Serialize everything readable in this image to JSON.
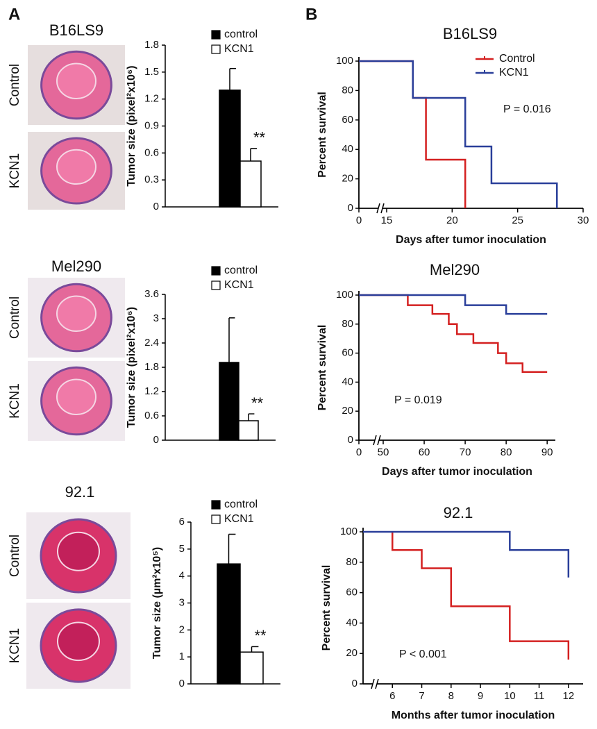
{
  "panel_labels": [
    "A",
    "B"
  ],
  "images": [
    {
      "title": "B16LS9",
      "labels": [
        "Control",
        "KCN1"
      ]
    },
    {
      "title": "Mel290",
      "labels": [
        "Control",
        "KCN1"
      ]
    },
    {
      "title": "92.1",
      "labels": [
        "Control",
        "KCN1"
      ]
    }
  ],
  "chart_data": [
    {
      "type": "bar",
      "categories": [
        null
      ],
      "ylabel": "Tumor size (pixel²x10⁶)",
      "series": [
        {
          "name": "control",
          "color": "#000000",
          "values": [
            1.3
          ],
          "errors": [
            0.24
          ]
        },
        {
          "name": "KCN1",
          "color": "#ffffff",
          "values": [
            0.51
          ],
          "errors": [
            0.14
          ]
        }
      ],
      "ylim": [
        0,
        1.8
      ],
      "yticks": [
        0,
        0.3,
        0.6,
        0.9,
        1.2,
        1.5,
        1.8
      ],
      "annotation": "**"
    },
    {
      "type": "bar",
      "categories": [
        null
      ],
      "ylabel": "Tumor size (pixel²x10⁶)",
      "series": [
        {
          "name": "control",
          "color": "#000000",
          "values": [
            1.92
          ],
          "errors": [
            1.1
          ]
        },
        {
          "name": "KCN1",
          "color": "#ffffff",
          "values": [
            0.48
          ],
          "errors": [
            0.17
          ]
        }
      ],
      "ylim": [
        0,
        3.6
      ],
      "yticks": [
        0,
        0.6,
        1.2,
        1.8,
        2.4,
        3,
        3.6
      ],
      "annotation": "**"
    },
    {
      "type": "bar",
      "categories": [
        null
      ],
      "ylabel": "Tumor size (µm²x10⁵)",
      "series": [
        {
          "name": "control",
          "color": "#000000",
          "values": [
            4.45
          ],
          "errors": [
            1.1
          ]
        },
        {
          "name": "KCN1",
          "color": "#ffffff",
          "values": [
            1.18
          ],
          "errors": [
            0.2
          ]
        }
      ],
      "ylim": [
        0,
        6
      ],
      "yticks": [
        0,
        1,
        2,
        3,
        4,
        5,
        6
      ],
      "annotation": "**"
    },
    {
      "type": "step",
      "title": "B16LS9",
      "xlabel": "Days after tumor inoculation",
      "ylabel": "Percent survival",
      "series": [
        {
          "name": "Control",
          "color": "#d42020",
          "x": [
            0,
            17,
            18,
            21
          ],
          "values": [
            100,
            75,
            33,
            0
          ]
        },
        {
          "name": "KCN1",
          "color": "#2a3f9a",
          "x": [
            0,
            17,
            21,
            23,
            28
          ],
          "values": [
            100,
            75,
            42,
            17,
            0
          ]
        }
      ],
      "xlim": [
        0,
        30
      ],
      "xticks": [
        0,
        15,
        20,
        25,
        30
      ],
      "ylim": [
        0,
        100
      ],
      "yticks": [
        0,
        20,
        40,
        60,
        80,
        100
      ],
      "x_break": true,
      "legend": "upper right",
      "annotation": "P = 0.016"
    },
    {
      "type": "step",
      "title": "Mel290",
      "xlabel": "Days after tumor inoculation",
      "ylabel": "Percent survival",
      "series": [
        {
          "color": "#d42020",
          "x": [
            0,
            56,
            62,
            66,
            68,
            72,
            78,
            80,
            84,
            90
          ],
          "values": [
            100,
            93,
            87,
            80,
            73,
            67,
            60,
            53,
            47,
            47
          ]
        },
        {
          "color": "#2a3f9a",
          "x": [
            0,
            70,
            80,
            90
          ],
          "values": [
            100,
            93,
            87,
            87
          ]
        }
      ],
      "xlim": [
        0,
        92
      ],
      "xticks": [
        0,
        50,
        60,
        70,
        80,
        90
      ],
      "ylim": [
        0,
        100
      ],
      "yticks": [
        0,
        20,
        40,
        60,
        80,
        100
      ],
      "x_break": true,
      "annotation": "P = 0.019"
    },
    {
      "type": "step",
      "title": "92.1",
      "xlabel": "Months after tumor inoculation",
      "ylabel": "Percent survival",
      "series": [
        {
          "color": "#d42020",
          "x": [
            6,
            6,
            7,
            8,
            10,
            12
          ],
          "values": [
            100,
            88,
            76,
            51,
            28,
            16
          ]
        },
        {
          "color": "#2a3f9a",
          "x": [
            5,
            10,
            12
          ],
          "values": [
            100,
            88,
            70
          ]
        }
      ],
      "xlim": [
        5,
        12.5
      ],
      "xticks": [
        6,
        7,
        8,
        9,
        10,
        11,
        12
      ],
      "ylim": [
        0,
        100
      ],
      "yticks": [
        0,
        20,
        40,
        60,
        80,
        100
      ],
      "x_break": true,
      "annotation": "P < 0.001"
    }
  ]
}
